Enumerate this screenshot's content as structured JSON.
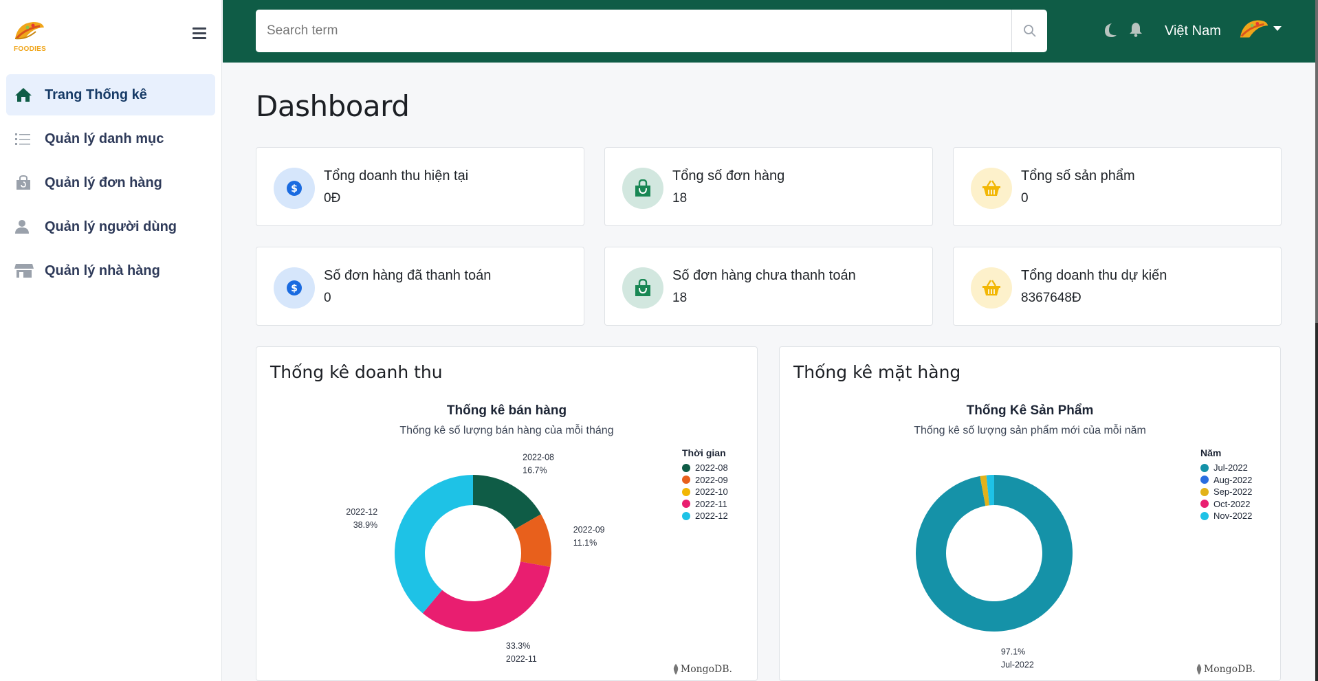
{
  "brand": {
    "logo_text": "FOODIES"
  },
  "sidebar": {
    "items": [
      {
        "label": "Trang Thống kê",
        "icon": "home-icon",
        "active": true
      },
      {
        "label": "Quản lý danh mục",
        "icon": "list-icon",
        "active": false
      },
      {
        "label": "Quản lý đơn hàng",
        "icon": "shopping-bag-icon",
        "active": false
      },
      {
        "label": "Quản lý người dùng",
        "icon": "user-icon",
        "active": false
      },
      {
        "label": "Quản lý nhà hàng",
        "icon": "store-icon",
        "active": false
      }
    ]
  },
  "topbar": {
    "search_placeholder": "Search term",
    "country": "Việt Nam"
  },
  "main": {
    "title": "Dashboard",
    "cards": [
      {
        "label": "Tổng doanh thu hiện tại",
        "value": "0Đ",
        "icon": "dollar-icon",
        "color": "#1a6be0"
      },
      {
        "label": "Tổng số đơn hàng",
        "value": "18",
        "icon": "shopping-bag-icon",
        "color": "#198754"
      },
      {
        "label": "Tổng số sản phẩm",
        "value": "0",
        "icon": "basket-icon",
        "color": "#f2b705"
      },
      {
        "label": "Số đơn hàng đã thanh toán",
        "value": "0",
        "icon": "dollar-icon",
        "color": "#1a6be0"
      },
      {
        "label": "Số đơn hàng chưa thanh toán",
        "value": "18",
        "icon": "shopping-bag-icon",
        "color": "#198754"
      },
      {
        "label": "Tổng doanh thu dự kiến",
        "value": "8367648Đ",
        "icon": "basket-icon",
        "color": "#f2b705"
      }
    ],
    "panels": [
      {
        "heading": "Thống kê doanh thu"
      },
      {
        "heading": "Thống kê mặt hàng"
      }
    ]
  },
  "chart_data": [
    {
      "type": "pie",
      "title": "Thống kê bán hàng",
      "subtitle": "Thống kê số lượng bán hàng của mỗi tháng",
      "legend_title": "Thời gian",
      "legend_position": "top-right",
      "categories": [
        "2022-08",
        "2022-09",
        "2022-10",
        "2022-11",
        "2022-12"
      ],
      "values": [
        16.7,
        11.1,
        0,
        33.3,
        38.9
      ],
      "value_labels": [
        "16.7%",
        "11.1%",
        "",
        "33.3%",
        "38.9%"
      ],
      "colors": [
        "#0f5c46",
        "#e8601c",
        "#f2b705",
        "#e91e70",
        "#1ec2e6"
      ],
      "watermark": "MongoDB."
    },
    {
      "type": "pie",
      "title": "Thống Kê Sản Phẩm",
      "subtitle": "Thống kê số lượng sản phẩm mới của mỗi năm",
      "legend_title": "Năm",
      "legend_position": "top-right",
      "categories": [
        "Jul-2022",
        "Aug-2022",
        "Sep-2022",
        "Oct-2022",
        "Nov-2022"
      ],
      "values": [
        97.1,
        0,
        1.3,
        0,
        1.6
      ],
      "value_labels": [
        "97.1%",
        "",
        "",
        "",
        ""
      ],
      "colors": [
        "#1592a8",
        "#2a6de0",
        "#e2b21a",
        "#e91e70",
        "#1ec2e6"
      ],
      "watermark": "MongoDB."
    }
  ]
}
